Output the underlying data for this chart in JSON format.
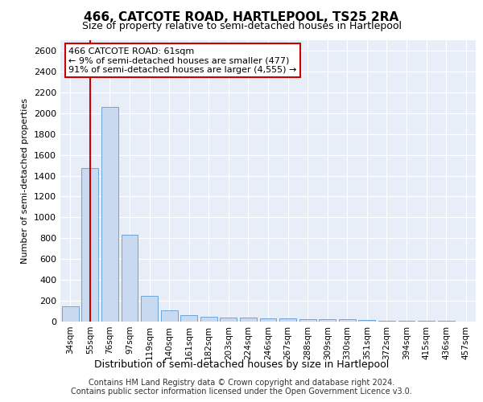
{
  "title1": "466, CATCOTE ROAD, HARTLEPOOL, TS25 2RA",
  "title2": "Size of property relative to semi-detached houses in Hartlepool",
  "xlabel": "Distribution of semi-detached houses by size in Hartlepool",
  "ylabel": "Number of semi-detached properties",
  "categories": [
    "34sqm",
    "55sqm",
    "76sqm",
    "97sqm",
    "119sqm",
    "140sqm",
    "161sqm",
    "182sqm",
    "203sqm",
    "224sqm",
    "246sqm",
    "267sqm",
    "288sqm",
    "309sqm",
    "330sqm",
    "351sqm",
    "372sqm",
    "394sqm",
    "415sqm",
    "436sqm",
    "457sqm"
  ],
  "values": [
    150,
    1470,
    2060,
    830,
    245,
    110,
    65,
    45,
    35,
    35,
    30,
    30,
    25,
    25,
    20,
    15,
    10,
    8,
    5,
    4,
    3
  ],
  "bar_color": "#c9d9f0",
  "bar_edge_color": "#5b9bd5",
  "annotation_text": "466 CATCOTE ROAD: 61sqm\n← 9% of semi-detached houses are smaller (477)\n91% of semi-detached houses are larger (4,555) →",
  "vline_idx": 1.0,
  "ylim": [
    0,
    2700
  ],
  "yticks": [
    0,
    200,
    400,
    600,
    800,
    1000,
    1200,
    1400,
    1600,
    1800,
    2000,
    2200,
    2400,
    2600
  ],
  "footer1": "Contains HM Land Registry data © Crown copyright and database right 2024.",
  "footer2": "Contains public sector information licensed under the Open Government Licence v3.0.",
  "bg_color": "#e8eef8",
  "annotation_box_color": "#ffffff",
  "annotation_box_edge": "#cc0000",
  "vline_color": "#cc0000",
  "title1_fontsize": 11,
  "title2_fontsize": 9,
  "ylabel_fontsize": 8,
  "xlabel_fontsize": 9,
  "tick_fontsize": 8,
  "xtick_fontsize": 7.5,
  "footer_fontsize": 7
}
